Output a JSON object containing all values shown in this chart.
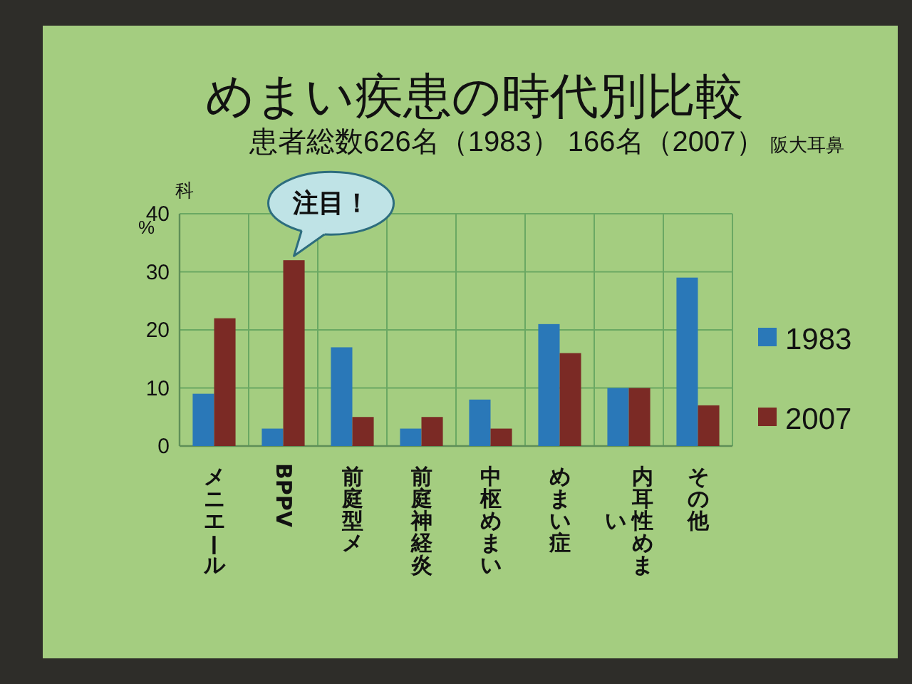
{
  "chart_data": {
    "type": "bar",
    "title": "めまい疾患の時代別比較",
    "subtitle": "患者総数626名（1983） 166名（2007）",
    "ylabel": "%",
    "categories": [
      "メニエール",
      "BPPV",
      "前庭型メ",
      "前庭神経炎",
      "中枢めまい",
      "めまい症",
      "内耳性めまい",
      "その他"
    ],
    "series": [
      {
        "name": "1983",
        "color": "#2a78b8",
        "values": [
          9,
          3,
          17,
          3,
          8,
          21,
          10,
          29
        ]
      },
      {
        "name": "2007",
        "color": "#7b2a25",
        "values": [
          22,
          32,
          5,
          5,
          3,
          16,
          10,
          7
        ]
      }
    ],
    "ylim": [
      0,
      40
    ],
    "yticks": [
      0,
      10,
      20,
      30,
      40
    ],
    "grid": true,
    "legend": "right",
    "annotations": [
      "阪大耳鼻科",
      {
        "text": "注目！",
        "x": "BPPV",
        "y": 32
      }
    ]
  }
}
